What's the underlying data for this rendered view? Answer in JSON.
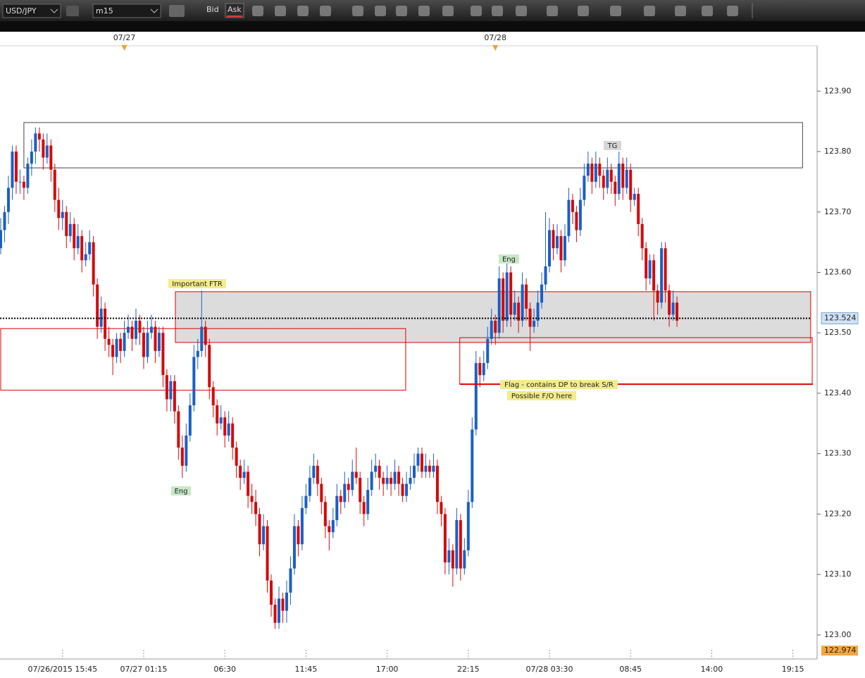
{
  "toolbar": {
    "symbol": "USD/JPY",
    "timeframe": "m15",
    "bid": "Bid",
    "ask": "Ask"
  },
  "chart_data": {
    "type": "candlestick",
    "bull_color": "#1b5fc6",
    "bear_color": "#d40a0a",
    "xlim": [
      0,
      210
    ],
    "xticks": [
      {
        "value": 16,
        "label": "07/26/2015 15:45"
      },
      {
        "value": 37,
        "label": "07/27 01:15"
      },
      {
        "value": 58,
        "label": "06:30"
      },
      {
        "value": 79,
        "label": "11:45"
      },
      {
        "value": 100,
        "label": "17:00"
      },
      {
        "value": 121,
        "label": "22:15"
      },
      {
        "value": 142,
        "label": "07/28 03:30"
      },
      {
        "value": 163,
        "label": "08:45"
      },
      {
        "value": 184,
        "label": "14:00"
      },
      {
        "value": 205,
        "label": "19:15"
      }
    ],
    "date_markers": [
      {
        "value": 32,
        "label": "07/27"
      },
      {
        "value": 128,
        "label": "07/28"
      }
    ],
    "ylim": [
      122.966,
      123.975
    ],
    "yticks": [
      {
        "value": 123.0,
        "label": "123.00"
      },
      {
        "value": 123.1,
        "label": "123.10"
      },
      {
        "value": 123.2,
        "label": "123.20"
      },
      {
        "value": 123.3,
        "label": "123.30"
      },
      {
        "value": 123.4,
        "label": "123.40"
      },
      {
        "value": 123.5,
        "label": "123.50"
      },
      {
        "value": 123.6,
        "label": "123.60"
      },
      {
        "value": 123.7,
        "label": "123.70"
      },
      {
        "value": 123.8,
        "label": "123.80"
      },
      {
        "value": 123.9,
        "label": "123.90"
      }
    ],
    "current_price": 123.524,
    "low_marker": 122.974,
    "zones": [
      {
        "x": [
          6,
          207.5
        ],
        "y": [
          123.773,
          123.848
        ],
        "stroke": "#444444",
        "fill": "none"
      },
      {
        "x": [
          45.2,
          209.6
        ],
        "y": [
          123.484,
          123.568
        ],
        "stroke": "#e00000",
        "fill": "#dcdcdc"
      },
      {
        "x": [
          0,
          104.8
        ],
        "y": [
          123.405,
          123.507
        ],
        "stroke": "#e00000",
        "fill": "none"
      },
      {
        "x": [
          118.8,
          210
        ],
        "y": [
          123.415,
          123.492
        ],
        "stroke": "#e00000",
        "fill": "none"
      }
    ],
    "annotations": [
      {
        "text": "Important FTR",
        "color": "#f3ec8a"
      },
      {
        "text": "Eng",
        "color": "#c6e8c6"
      },
      {
        "text": "Eng",
        "color": "#c6e8c6"
      },
      {
        "text": "TG",
        "color": "#d6d6d6"
      },
      {
        "text": "Flag - contains DP to break S/R",
        "color": "#f3ec8a"
      },
      {
        "text": "Possible F/O here",
        "color": "#f3ec8a"
      }
    ],
    "ohlc": [
      [
        123.64,
        123.69,
        123.63,
        123.67
      ],
      [
        123.67,
        123.71,
        123.65,
        123.7
      ],
      [
        123.7,
        123.76,
        123.68,
        123.74
      ],
      [
        123.74,
        123.81,
        123.72,
        123.8
      ],
      [
        123.8,
        123.81,
        123.73,
        123.75
      ],
      [
        123.75,
        123.77,
        123.73,
        123.75
      ],
      [
        123.75,
        123.76,
        123.72,
        123.74
      ],
      [
        123.74,
        123.79,
        123.73,
        123.78
      ],
      [
        123.78,
        123.82,
        123.76,
        123.8
      ],
      [
        123.8,
        123.84,
        123.78,
        123.83
      ],
      [
        123.83,
        123.84,
        123.8,
        123.82
      ],
      [
        123.82,
        123.83,
        123.77,
        123.79
      ],
      [
        123.79,
        123.83,
        123.78,
        123.81
      ],
      [
        123.81,
        123.82,
        123.75,
        123.77
      ],
      [
        123.77,
        123.78,
        123.7,
        123.72
      ],
      [
        123.72,
        123.74,
        123.67,
        123.69
      ],
      [
        123.69,
        123.72,
        123.67,
        123.7
      ],
      [
        123.7,
        123.71,
        123.64,
        123.66
      ],
      [
        123.66,
        123.7,
        123.65,
        123.68
      ],
      [
        123.68,
        123.69,
        123.62,
        123.64
      ],
      [
        123.64,
        123.68,
        123.63,
        123.66
      ],
      [
        123.66,
        123.67,
        123.6,
        123.62
      ],
      [
        123.62,
        123.65,
        123.61,
        123.63
      ],
      [
        123.63,
        123.67,
        123.62,
        123.65
      ],
      [
        123.65,
        123.66,
        123.56,
        123.58
      ],
      [
        123.58,
        123.59,
        123.49,
        123.51
      ],
      [
        123.51,
        123.56,
        123.5,
        123.54
      ],
      [
        123.54,
        123.55,
        123.47,
        123.49
      ],
      [
        123.49,
        123.51,
        123.46,
        123.48
      ],
      [
        123.48,
        123.49,
        123.43,
        123.46
      ],
      [
        123.46,
        123.5,
        123.45,
        123.49
      ],
      [
        123.49,
        123.5,
        123.45,
        123.47
      ],
      [
        123.47,
        123.52,
        123.46,
        123.5
      ],
      [
        123.5,
        123.53,
        123.49,
        123.51
      ],
      [
        123.51,
        123.52,
        123.47,
        123.49
      ],
      [
        123.49,
        123.54,
        123.48,
        123.52
      ],
      [
        123.52,
        123.53,
        123.48,
        123.5
      ],
      [
        123.5,
        123.51,
        123.44,
        123.46
      ],
      [
        123.46,
        123.52,
        123.45,
        123.5
      ],
      [
        123.5,
        123.53,
        123.49,
        123.51
      ],
      [
        123.51,
        123.52,
        123.45,
        123.47
      ],
      [
        123.47,
        123.51,
        123.46,
        123.5
      ],
      [
        123.5,
        123.51,
        123.41,
        123.43
      ],
      [
        123.43,
        123.44,
        123.37,
        123.39
      ],
      [
        123.39,
        123.43,
        123.37,
        123.42
      ],
      [
        123.42,
        123.43,
        123.35,
        123.37
      ],
      [
        123.37,
        123.38,
        123.29,
        123.31
      ],
      [
        123.31,
        123.33,
        123.26,
        123.28
      ],
      [
        123.28,
        123.35,
        123.27,
        123.33
      ],
      [
        123.33,
        123.4,
        123.32,
        123.38
      ],
      [
        123.38,
        123.48,
        123.37,
        123.46
      ],
      [
        123.46,
        123.49,
        123.44,
        123.47
      ],
      [
        123.47,
        123.57,
        123.46,
        123.51
      ],
      [
        123.51,
        123.52,
        123.46,
        123.48
      ],
      [
        123.48,
        123.49,
        123.39,
        123.41
      ],
      [
        123.41,
        123.42,
        123.36,
        123.38
      ],
      [
        123.38,
        123.39,
        123.33,
        123.35
      ],
      [
        123.35,
        123.38,
        123.34,
        123.36
      ],
      [
        123.36,
        123.37,
        123.31,
        123.33
      ],
      [
        123.33,
        123.37,
        123.32,
        123.35
      ],
      [
        123.35,
        123.36,
        123.29,
        123.31
      ],
      [
        123.31,
        123.32,
        123.26,
        123.28
      ],
      [
        123.28,
        123.29,
        123.24,
        123.26
      ],
      [
        123.26,
        123.29,
        123.25,
        123.27
      ],
      [
        123.27,
        123.28,
        123.21,
        123.23
      ],
      [
        123.23,
        123.25,
        123.2,
        123.22
      ],
      [
        123.22,
        123.24,
        123.18,
        123.2
      ],
      [
        123.2,
        123.21,
        123.13,
        123.15
      ],
      [
        123.15,
        123.2,
        123.14,
        123.18
      ],
      [
        123.18,
        123.19,
        123.07,
        123.09
      ],
      [
        123.09,
        123.1,
        123.03,
        123.05
      ],
      [
        123.05,
        123.06,
        123.01,
        123.02
      ],
      [
        123.02,
        123.08,
        123.01,
        123.06
      ],
      [
        123.06,
        123.07,
        123.02,
        123.04
      ],
      [
        123.04,
        123.09,
        123.02,
        123.07
      ],
      [
        123.07,
        123.13,
        123.05,
        123.11
      ],
      [
        123.11,
        123.2,
        123.1,
        123.18
      ],
      [
        123.18,
        123.19,
        123.13,
        123.15
      ],
      [
        123.15,
        123.23,
        123.14,
        123.21
      ],
      [
        123.21,
        123.25,
        123.2,
        123.23
      ],
      [
        123.23,
        123.28,
        123.22,
        123.26
      ],
      [
        123.26,
        123.3,
        123.25,
        123.28
      ],
      [
        123.28,
        123.29,
        123.23,
        123.25
      ],
      [
        123.25,
        123.26,
        123.2,
        123.22
      ],
      [
        123.22,
        123.23,
        123.16,
        123.18
      ],
      [
        123.18,
        123.19,
        123.14,
        123.17
      ],
      [
        123.17,
        123.21,
        123.16,
        123.19
      ],
      [
        123.19,
        123.25,
        123.18,
        123.23
      ],
      [
        123.23,
        123.24,
        123.2,
        123.22
      ],
      [
        123.22,
        123.27,
        123.21,
        123.25
      ],
      [
        123.25,
        123.26,
        123.22,
        123.24
      ],
      [
        123.24,
        123.29,
        123.23,
        123.27
      ],
      [
        123.27,
        123.31,
        123.25,
        123.26
      ],
      [
        123.26,
        123.27,
        123.2,
        123.22
      ],
      [
        123.22,
        123.23,
        123.18,
        123.2
      ],
      [
        123.2,
        123.26,
        123.19,
        123.24
      ],
      [
        123.24,
        123.29,
        123.23,
        123.27
      ],
      [
        123.27,
        123.3,
        123.26,
        123.28
      ],
      [
        123.28,
        123.29,
        123.24,
        123.26
      ],
      [
        123.26,
        123.27,
        123.23,
        123.25
      ],
      [
        123.25,
        123.28,
        123.24,
        123.26
      ],
      [
        123.26,
        123.27,
        123.23,
        123.25
      ],
      [
        123.25,
        123.29,
        123.24,
        123.27
      ],
      [
        123.27,
        123.28,
        123.23,
        123.25
      ],
      [
        123.25,
        123.26,
        123.22,
        123.23
      ],
      [
        123.23,
        123.27,
        123.22,
        123.25
      ],
      [
        123.25,
        123.28,
        123.24,
        123.26
      ],
      [
        123.26,
        123.3,
        123.25,
        123.28
      ],
      [
        123.28,
        123.31,
        123.27,
        123.3
      ],
      [
        123.3,
        123.31,
        123.26,
        123.27
      ],
      [
        123.27,
        123.3,
        123.26,
        123.28
      ],
      [
        123.28,
        123.29,
        123.26,
        123.27
      ],
      [
        123.27,
        123.3,
        123.26,
        123.28
      ],
      [
        123.28,
        123.29,
        123.2,
        123.22
      ],
      [
        123.22,
        123.23,
        123.18,
        123.2
      ],
      [
        123.2,
        123.21,
        123.1,
        123.12
      ],
      [
        123.12,
        123.16,
        123.1,
        123.14
      ],
      [
        123.14,
        123.15,
        123.08,
        123.11
      ],
      [
        123.11,
        123.21,
        123.1,
        123.19
      ],
      [
        123.19,
        123.2,
        123.09,
        123.11
      ],
      [
        123.11,
        123.16,
        123.1,
        123.14
      ],
      [
        123.14,
        123.24,
        123.13,
        123.22
      ],
      [
        123.22,
        123.36,
        123.21,
        123.34
      ],
      [
        123.34,
        123.47,
        123.33,
        123.45
      ],
      [
        123.45,
        123.46,
        123.41,
        123.43
      ],
      [
        123.43,
        123.47,
        123.42,
        123.45
      ],
      [
        123.45,
        123.51,
        123.44,
        123.49
      ],
      [
        123.49,
        123.54,
        123.48,
        123.52
      ],
      [
        123.52,
        123.53,
        123.48,
        123.5
      ],
      [
        123.5,
        123.61,
        123.49,
        123.59
      ],
      [
        123.59,
        123.6,
        123.5,
        123.52
      ],
      [
        123.52,
        123.62,
        123.51,
        123.6
      ],
      [
        123.6,
        123.61,
        123.51,
        123.53
      ],
      [
        123.53,
        123.57,
        123.52,
        123.55
      ],
      [
        123.55,
        123.56,
        123.5,
        123.52
      ],
      [
        123.52,
        123.6,
        123.51,
        123.58
      ],
      [
        123.58,
        123.59,
        123.52,
        123.54
      ],
      [
        123.54,
        123.55,
        123.47,
        123.51
      ],
      [
        123.51,
        123.54,
        123.5,
        123.52
      ],
      [
        123.52,
        123.57,
        123.51,
        123.55
      ],
      [
        123.55,
        123.6,
        123.54,
        123.58
      ],
      [
        123.58,
        123.7,
        123.57,
        123.61
      ],
      [
        123.61,
        123.69,
        123.6,
        123.67
      ],
      [
        123.67,
        123.68,
        123.62,
        123.64
      ],
      [
        123.64,
        123.68,
        123.63,
        123.66
      ],
      [
        123.66,
        123.67,
        123.6,
        123.62
      ],
      [
        123.62,
        123.68,
        123.61,
        123.66
      ],
      [
        123.66,
        123.74,
        123.65,
        123.72
      ],
      [
        123.72,
        123.73,
        123.68,
        123.7
      ],
      [
        123.7,
        123.71,
        123.65,
        123.67
      ],
      [
        123.67,
        123.74,
        123.66,
        123.72
      ],
      [
        123.72,
        123.78,
        123.71,
        123.76
      ],
      [
        123.76,
        123.8,
        123.75,
        123.78
      ],
      [
        123.78,
        123.79,
        123.73,
        123.75
      ],
      [
        123.75,
        123.8,
        123.74,
        123.78
      ],
      [
        123.78,
        123.79,
        123.74,
        123.76
      ],
      [
        123.76,
        123.77,
        123.72,
        123.74
      ],
      [
        123.74,
        123.79,
        123.73,
        123.77
      ],
      [
        123.77,
        123.78,
        123.73,
        123.75
      ],
      [
        123.75,
        123.76,
        123.71,
        123.73
      ],
      [
        123.73,
        123.8,
        123.72,
        123.78
      ],
      [
        123.78,
        123.79,
        123.72,
        123.74
      ],
      [
        123.74,
        123.79,
        123.73,
        123.77
      ],
      [
        123.77,
        123.78,
        123.7,
        123.72
      ],
      [
        123.72,
        123.74,
        123.71,
        123.73
      ],
      [
        123.73,
        123.74,
        123.66,
        123.68
      ],
      [
        123.68,
        123.69,
        123.62,
        123.64
      ],
      [
        123.64,
        123.65,
        123.57,
        123.59
      ],
      [
        123.59,
        123.63,
        123.58,
        123.62
      ],
      [
        123.62,
        123.63,
        123.52,
        123.57
      ],
      [
        123.57,
        123.58,
        123.53,
        123.55
      ],
      [
        123.55,
        123.65,
        123.54,
        123.64
      ],
      [
        123.64,
        123.65,
        123.55,
        123.57
      ],
      [
        123.57,
        123.58,
        123.51,
        123.53
      ],
      [
        123.53,
        123.57,
        123.52,
        123.55
      ],
      [
        123.55,
        123.56,
        123.51,
        123.52
      ]
    ]
  }
}
